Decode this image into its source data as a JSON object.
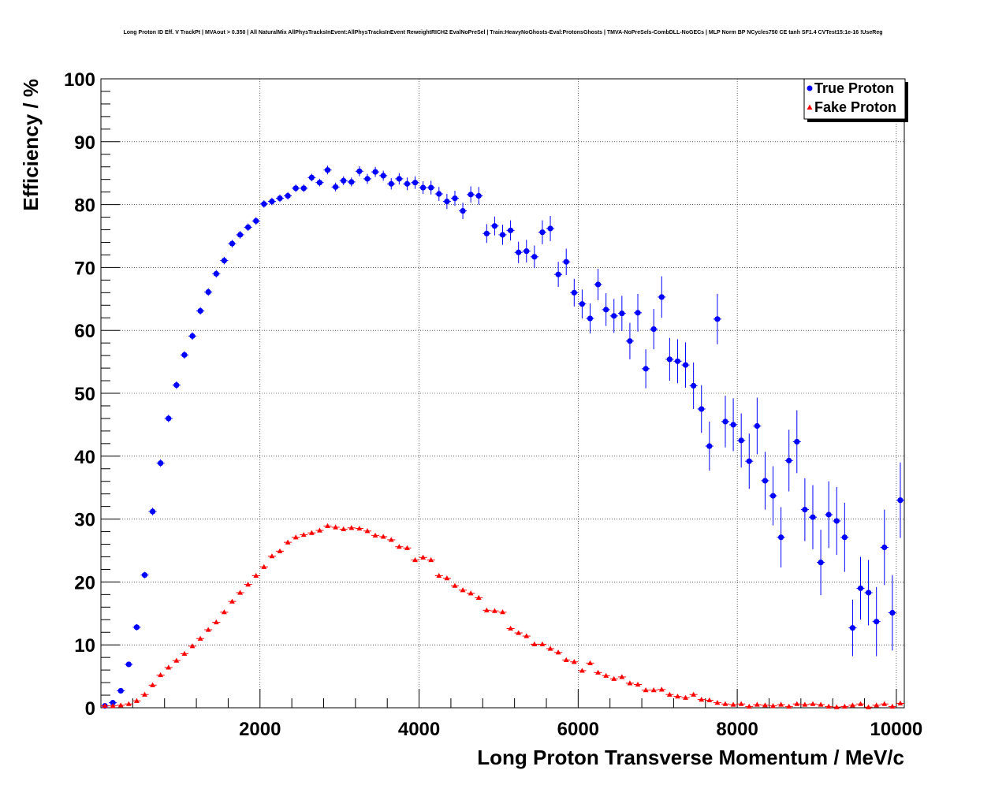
{
  "chart_data": {
    "type": "scatter",
    "title": "Long Proton ID Eff. V TrackPt | MVAout > 0.350 | All NaturalMix AllPhysTracksInEvent:AllPhysTracksInEvent ReweightRICH2 EvalNoPreSel | Train:HeavyNoGhosts-Eval:ProtonsGhosts | TMVA-NoPreSels-CombDLL-NoGECs | MLP Norm BP NCycles750 CE tanh SF1.4 CVTest15:1e-16 !UseReg",
    "xlabel": "Long Proton Transverse Momentum / MeV/c",
    "ylabel": "Efficiency / %",
    "xlim": [
      0,
      10100
    ],
    "ylim": [
      0,
      100
    ],
    "x_ticks": [
      "2000",
      "4000",
      "6000",
      "8000",
      "10000"
    ],
    "y_ticks": [
      "0",
      "10",
      "20",
      "30",
      "40",
      "50",
      "60",
      "70",
      "80",
      "90",
      "100"
    ],
    "grid": true,
    "legend_position": "top-right",
    "series": [
      {
        "name": "True Proton",
        "color": "#0000ff",
        "marker": "circle",
        "x": [
          50,
          150,
          250,
          350,
          450,
          550,
          650,
          750,
          850,
          950,
          1050,
          1150,
          1250,
          1350,
          1450,
          1550,
          1650,
          1750,
          1850,
          1950,
          2050,
          2150,
          2250,
          2350,
          2450,
          2550,
          2650,
          2750,
          2850,
          2950,
          3050,
          3150,
          3250,
          3350,
          3450,
          3550,
          3650,
          3750,
          3850,
          3950,
          4050,
          4150,
          4250,
          4350,
          4450,
          4550,
          4650,
          4750,
          4850,
          4950,
          5050,
          5150,
          5250,
          5350,
          5450,
          5550,
          5650,
          5750,
          5850,
          5950,
          6050,
          6150,
          6250,
          6350,
          6450,
          6550,
          6650,
          6750,
          6850,
          6950,
          7050,
          7150,
          7250,
          7350,
          7450,
          7550,
          7650,
          7750,
          7850,
          7950,
          8050,
          8150,
          8250,
          8350,
          8450,
          8550,
          8650,
          8750,
          8850,
          8950,
          9050,
          9150,
          9250,
          9350,
          9450,
          9550,
          9650,
          9750,
          9850,
          9950,
          10050
        ],
        "y": [
          0.3,
          0.8,
          2.7,
          6.9,
          12.8,
          21.1,
          31.2,
          38.9,
          46.0,
          51.3,
          56.1,
          59.1,
          63.1,
          66.1,
          69.0,
          71.1,
          73.8,
          75.2,
          76.4,
          77.4,
          80.1,
          80.5,
          81.0,
          81.4,
          82.6,
          82.6,
          84.3,
          83.5,
          85.5,
          82.8,
          83.8,
          83.6,
          85.3,
          84.1,
          85.2,
          84.6,
          83.3,
          84.1,
          83.3,
          83.5,
          82.7,
          82.7,
          81.7,
          80.5,
          81.0,
          79.0,
          81.6,
          81.4,
          75.4,
          76.6,
          75.2,
          75.9,
          72.4,
          72.6,
          71.7,
          75.6,
          76.2,
          68.9,
          70.9,
          66.0,
          64.2,
          61.9,
          67.3,
          63.3,
          62.3,
          62.7,
          58.3,
          62.8,
          53.9,
          60.2,
          65.3,
          55.4,
          55.1,
          54.5,
          51.2,
          47.5,
          41.6,
          61.8,
          45.5,
          45.0,
          42.5,
          39.2,
          44.8,
          36.1,
          33.7,
          27.1,
          39.3,
          42.3,
          31.5,
          30.3,
          23.1,
          30.7,
          29.7,
          27.1,
          12.7,
          19.0,
          18.3,
          13.7,
          25.5,
          15.1,
          33.0
        ],
        "y_err": [
          0.1,
          0.2,
          0.3,
          0.4,
          0.5,
          0.5,
          0.6,
          0.6,
          0.6,
          0.6,
          0.6,
          0.6,
          0.6,
          0.6,
          0.6,
          0.6,
          0.6,
          0.6,
          0.6,
          0.6,
          0.6,
          0.6,
          0.6,
          0.6,
          0.6,
          0.6,
          0.6,
          0.6,
          0.7,
          0.7,
          0.7,
          0.7,
          0.8,
          0.8,
          0.8,
          0.8,
          0.9,
          0.9,
          1.0,
          1.0,
          1.0,
          1.1,
          1.1,
          1.2,
          1.2,
          1.3,
          1.3,
          1.4,
          1.5,
          1.5,
          1.6,
          1.6,
          1.7,
          1.8,
          1.8,
          1.9,
          2.0,
          2.0,
          2.1,
          2.2,
          2.3,
          2.4,
          2.5,
          2.6,
          2.7,
          2.8,
          2.9,
          3.0,
          3.1,
          3.2,
          3.3,
          3.4,
          3.5,
          3.6,
          3.7,
          3.8,
          3.9,
          4.0,
          4.1,
          4.2,
          4.3,
          4.4,
          4.5,
          4.6,
          4.7,
          4.8,
          4.9,
          5.0,
          5.0,
          5.1,
          5.2,
          5.3,
          5.4,
          5.5,
          4.5,
          5.0,
          5.2,
          5.5,
          6.0,
          6.0,
          6.0
        ]
      },
      {
        "name": "Fake Proton",
        "color": "#ff0000",
        "marker": "triangle",
        "x": [
          50,
          150,
          250,
          350,
          450,
          550,
          650,
          750,
          850,
          950,
          1050,
          1150,
          1250,
          1350,
          1450,
          1550,
          1650,
          1750,
          1850,
          1950,
          2050,
          2150,
          2250,
          2350,
          2450,
          2550,
          2650,
          2750,
          2850,
          2950,
          3050,
          3150,
          3250,
          3350,
          3450,
          3550,
          3650,
          3750,
          3850,
          3950,
          4050,
          4150,
          4250,
          4350,
          4450,
          4550,
          4650,
          4750,
          4850,
          4950,
          5050,
          5150,
          5250,
          5350,
          5450,
          5550,
          5650,
          5750,
          5850,
          5950,
          6050,
          6150,
          6250,
          6350,
          6450,
          6550,
          6650,
          6750,
          6850,
          6950,
          7050,
          7150,
          7250,
          7350,
          7450,
          7550,
          7650,
          7750,
          7850,
          7950,
          8050,
          8150,
          8250,
          8350,
          8450,
          8550,
          8650,
          8750,
          8850,
          8950,
          9050,
          9150,
          9250,
          9350,
          9450,
          9550,
          9650,
          9750,
          9850,
          9950,
          10050
        ],
        "y": [
          0.3,
          0.3,
          0.4,
          0.6,
          1.1,
          2.1,
          3.6,
          5.2,
          6.4,
          7.5,
          8.6,
          9.8,
          11.0,
          12.4,
          13.6,
          15.2,
          16.9,
          18.3,
          19.6,
          21.0,
          22.4,
          24.1,
          24.9,
          26.3,
          27.1,
          27.5,
          27.8,
          28.2,
          28.9,
          28.7,
          28.4,
          28.6,
          28.5,
          28.1,
          27.4,
          27.2,
          26.7,
          25.6,
          25.4,
          23.5,
          23.9,
          23.5,
          21.0,
          20.6,
          19.4,
          18.7,
          18.2,
          17.5,
          15.5,
          15.4,
          15.2,
          12.6,
          11.9,
          11.4,
          10.1,
          10.1,
          9.4,
          8.8,
          7.6,
          7.3,
          5.9,
          7.1,
          5.6,
          5.1,
          4.6,
          4.9,
          3.9,
          3.7,
          2.8,
          2.8,
          2.9,
          2.1,
          1.8,
          1.6,
          2.1,
          1.3,
          1.2,
          0.8,
          0.6,
          0.5,
          0.6,
          0.2,
          0.5,
          0.4,
          0.3,
          0.5,
          0.2,
          0.6,
          0.5,
          0.6,
          0.5,
          0.2,
          0.1,
          0.2,
          0.4,
          0.6,
          0.1,
          0.4,
          0.6,
          0.2,
          0.7
        ],
        "y_err": [
          0.05,
          0.05,
          0.05,
          0.1,
          0.1,
          0.1,
          0.15,
          0.15,
          0.15,
          0.15,
          0.15,
          0.15,
          0.15,
          0.15,
          0.15,
          0.15,
          0.15,
          0.15,
          0.15,
          0.15,
          0.15,
          0.15,
          0.15,
          0.15,
          0.15,
          0.15,
          0.15,
          0.15,
          0.15,
          0.15,
          0.15,
          0.15,
          0.15,
          0.2,
          0.2,
          0.2,
          0.2,
          0.2,
          0.2,
          0.2,
          0.2,
          0.2,
          0.2,
          0.2,
          0.2,
          0.2,
          0.2,
          0.2,
          0.2,
          0.2,
          0.2,
          0.2,
          0.2,
          0.2,
          0.2,
          0.2,
          0.2,
          0.2,
          0.2,
          0.2,
          0.2,
          0.2,
          0.2,
          0.2,
          0.2,
          0.2,
          0.2,
          0.2,
          0.2,
          0.2,
          0.2,
          0.2,
          0.2,
          0.2,
          0.2,
          0.2,
          0.2,
          0.2,
          0.2,
          0.2,
          0.2,
          0.2,
          0.2,
          0.2,
          0.2,
          0.2,
          0.2,
          0.2,
          0.2,
          0.2,
          0.2,
          0.2,
          0.2,
          0.2,
          0.2,
          0.2,
          0.2,
          0.2,
          0.2,
          0.2,
          0.3
        ]
      }
    ]
  }
}
